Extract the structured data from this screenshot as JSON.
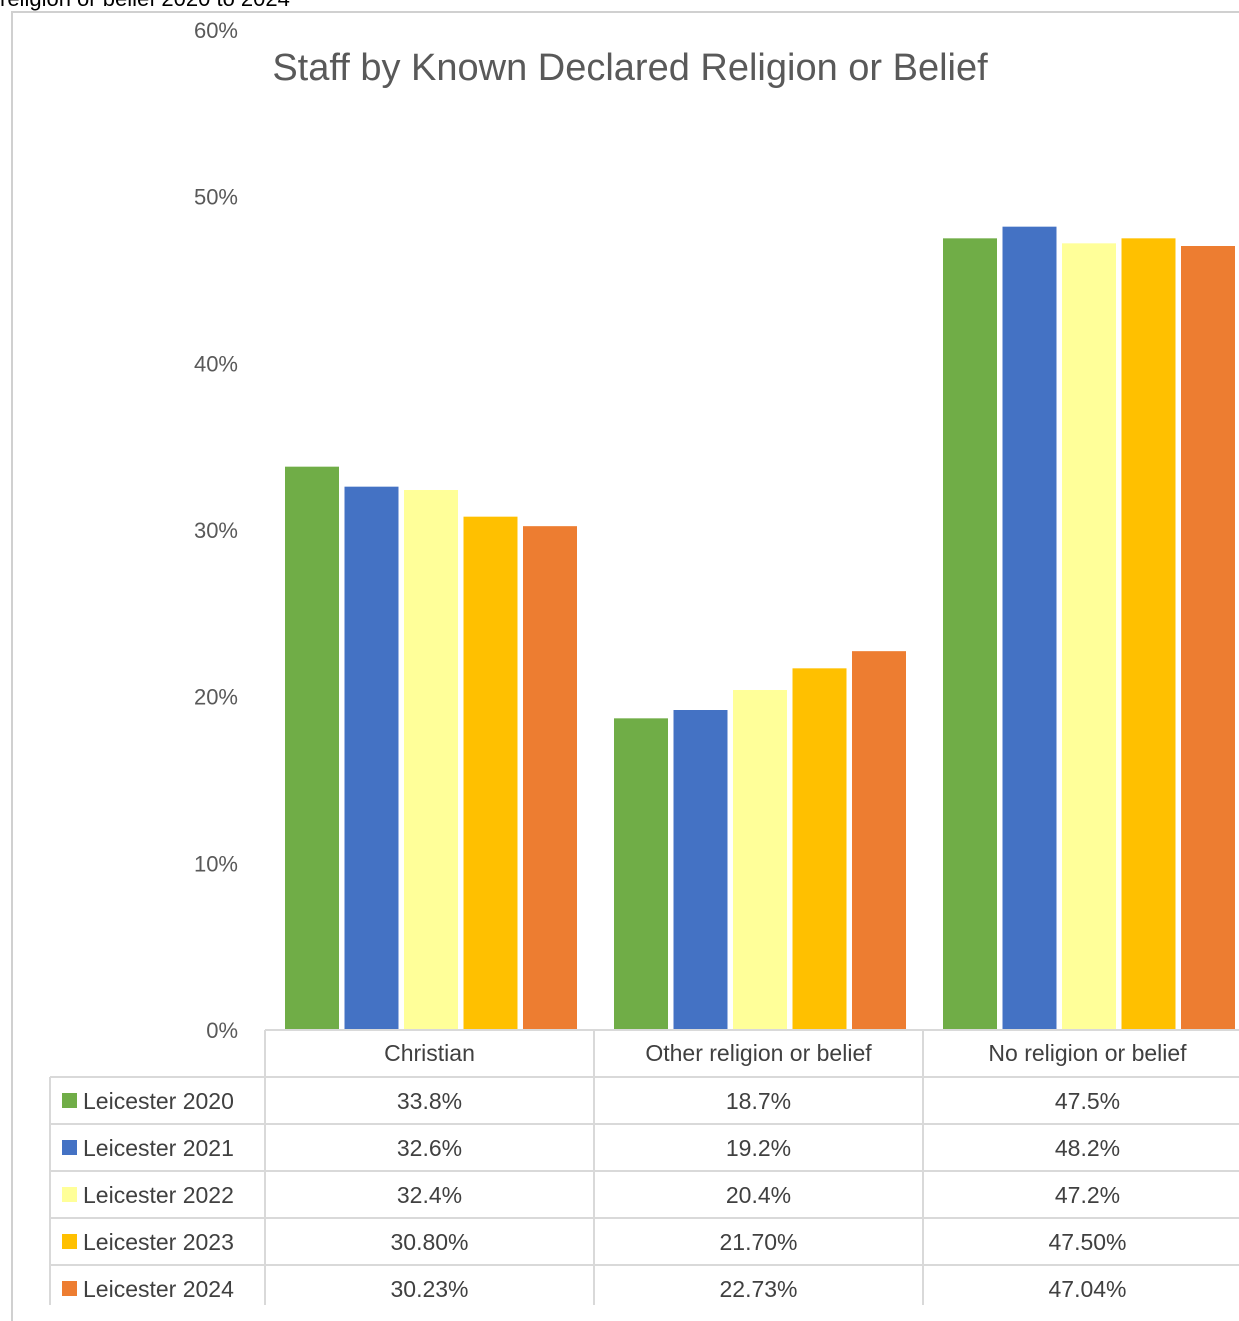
{
  "caption": "religion or belief 2020 to 2024",
  "chart_data": {
    "type": "bar",
    "title": "Staff by Known Declared Religion or Belief",
    "xlabel": "",
    "ylabel": "",
    "ylim": [
      0,
      60
    ],
    "y_ticks": [
      "0%",
      "10%",
      "20%",
      "30%",
      "40%",
      "50%",
      "60%"
    ],
    "grid": false,
    "legend": "data-table",
    "categories": [
      "Christian",
      "Other religion or belief",
      "No religion or belief"
    ],
    "series": [
      {
        "name": "Leicester 2020",
        "color": "#70ad47",
        "values": [
          33.8,
          18.7,
          47.5
        ],
        "labels": [
          "33.8%",
          "18.7%",
          "47.5%"
        ]
      },
      {
        "name": "Leicester 2021",
        "color": "#4472c4",
        "values": [
          32.6,
          19.2,
          48.2
        ],
        "labels": [
          "32.6%",
          "19.2%",
          "48.2%"
        ]
      },
      {
        "name": "Leicester 2022",
        "color": "#ffff99",
        "values": [
          32.4,
          20.4,
          47.2
        ],
        "labels": [
          "32.4%",
          "20.4%",
          "47.2%"
        ]
      },
      {
        "name": "Leicester 2023",
        "color": "#ffc000",
        "values": [
          30.8,
          21.7,
          47.5
        ],
        "labels": [
          "30.80%",
          "21.70%",
          "47.50%"
        ]
      },
      {
        "name": "Leicester 2024",
        "color": "#ed7d31",
        "values": [
          30.23,
          22.73,
          47.04
        ],
        "labels": [
          "30.23%",
          "22.73%",
          "47.04%"
        ]
      }
    ]
  }
}
